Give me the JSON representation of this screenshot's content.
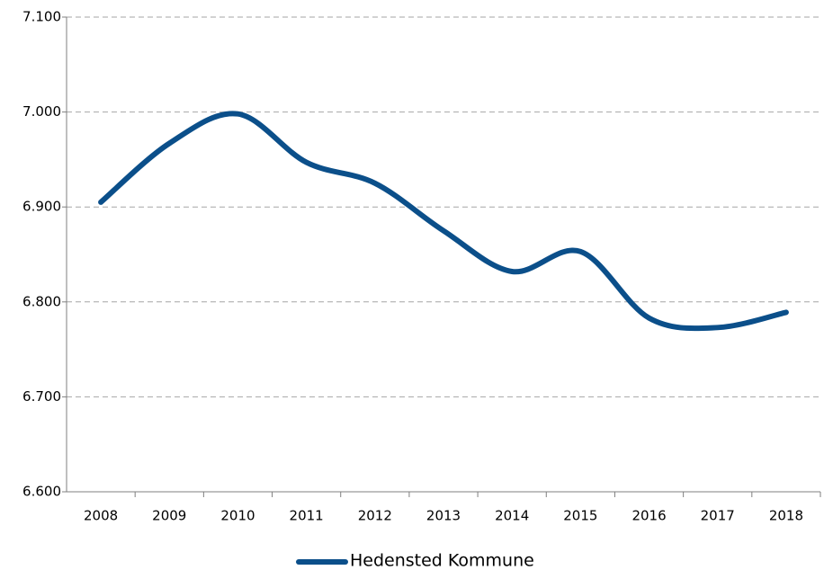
{
  "chart_data": {
    "type": "line",
    "categories": [
      "2008",
      "2009",
      "2010",
      "2011",
      "2012",
      "2013",
      "2014",
      "2015",
      "2016",
      "2017",
      "2018"
    ],
    "series": [
      {
        "name": "Hedensted Kommune",
        "color": "#0b4f8a",
        "values": [
          6905,
          6967,
          6998,
          6947,
          6925,
          6875,
          6832,
          6853,
          6783,
          6773,
          6789
        ]
      }
    ],
    "ylim": [
      6600,
      7100
    ],
    "yticks": [
      {
        "value": 6600,
        "label": "6.600"
      },
      {
        "value": 6700,
        "label": "6.700"
      },
      {
        "value": 6800,
        "label": "6.800"
      },
      {
        "value": 6900,
        "label": "6.900"
      },
      {
        "value": 7000,
        "label": "7.000"
      },
      {
        "value": 7100,
        "label": "7.100"
      }
    ],
    "grid": true,
    "smooth": true,
    "legend": "bottom"
  }
}
